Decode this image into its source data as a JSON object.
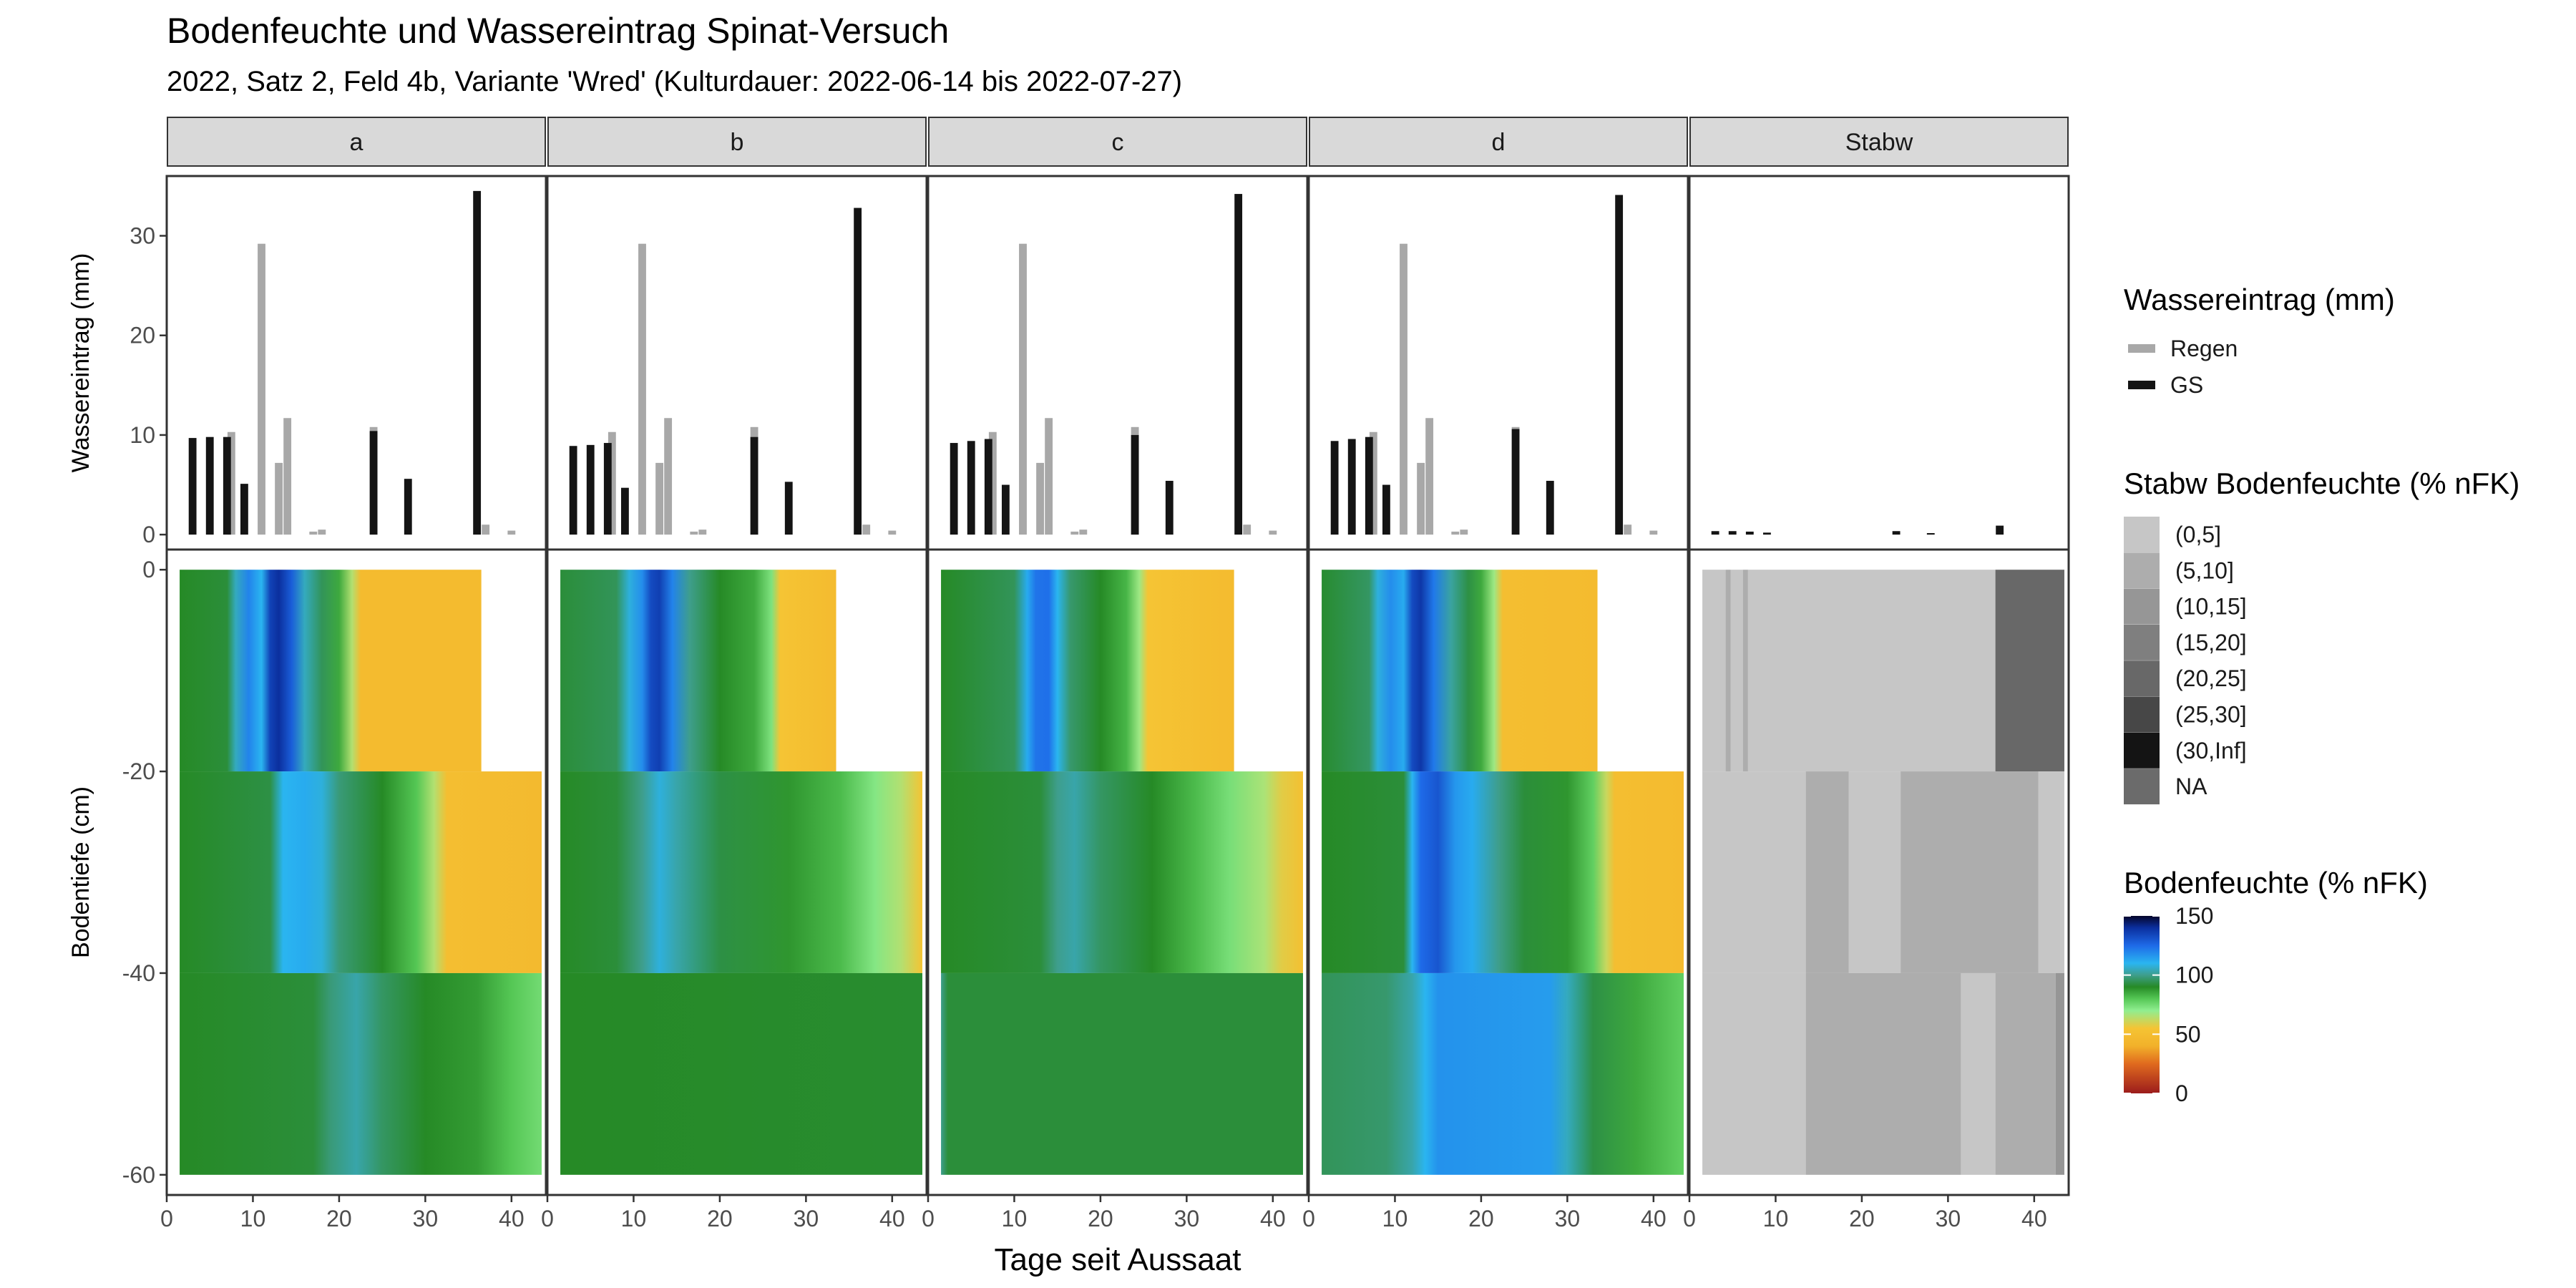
{
  "title": "Bodenfeuchte und Wassereintrag Spinat-Versuch",
  "subtitle": "2022, Satz 2, Feld 4b, Variante 'Wred' (Kulturdauer: 2022-06-14 bis 2022-07-27)",
  "chart_data": {
    "type": "bar",
    "panels": [
      "a",
      "b",
      "c",
      "d",
      "Stabw"
    ],
    "xlabel": "Tage seit Aussaat",
    "xlim": [
      0,
      44
    ],
    "xticks": [
      0,
      10,
      20,
      30,
      40
    ],
    "top": {
      "ylabel": "Wassereintrag (mm)",
      "ylim": [
        -1.5,
        36
      ],
      "yticks": [
        0,
        10,
        20,
        30
      ],
      "rain": {
        "x": [
          7.5,
          11,
          13,
          14,
          17,
          18,
          24,
          37,
          40
        ],
        "y": [
          10.3,
          29.2,
          7.2,
          11.7,
          0.3,
          0.5,
          10.8,
          1.0,
          0.4
        ]
      },
      "series": [
        {
          "name": "GS",
          "panel": "a",
          "x": [
            3,
            5,
            7,
            9,
            24,
            28,
            36
          ],
          "y": [
            9.7,
            9.8,
            9.8,
            5.1,
            10.4,
            5.6,
            34.5
          ]
        },
        {
          "name": "GS",
          "panel": "b",
          "x": [
            3,
            5,
            7,
            9,
            24,
            28,
            36
          ],
          "y": [
            8.9,
            9.0,
            9.2,
            4.7,
            9.8,
            5.3,
            32.8
          ]
        },
        {
          "name": "GS",
          "panel": "c",
          "x": [
            3,
            5,
            7,
            9,
            24,
            28,
            36
          ],
          "y": [
            9.2,
            9.4,
            9.6,
            5.0,
            10.0,
            5.4,
            34.2
          ]
        },
        {
          "name": "GS",
          "panel": "d",
          "x": [
            3,
            5,
            7,
            9,
            24,
            28,
            36
          ],
          "y": [
            9.4,
            9.6,
            9.8,
            5.0,
            10.6,
            5.4,
            34.1
          ]
        },
        {
          "name": "GS",
          "panel": "Stabw",
          "x": [
            3,
            5,
            7,
            9,
            24,
            28,
            36
          ],
          "y": [
            0.35,
            0.35,
            0.3,
            0.2,
            0.35,
            0.15,
            0.9
          ]
        }
      ]
    },
    "bottom": {
      "ylabel": "Bodentiefe (cm)",
      "ylim": [
        -62,
        2
      ],
      "yticks": [
        0,
        -20,
        -40,
        -60
      ],
      "layers": [
        {
          "ymin": -20,
          "ymax": 0,
          "xmin": 1.5
        },
        {
          "ymin": -40,
          "ymax": -20,
          "xmin": 1.5
        },
        {
          "ymin": -60,
          "ymax": -40,
          "xmin": 1.5
        }
      ],
      "moisture": {
        "a": [
          {
            "xmax": 36.5,
            "kf": [
              [
                1.5,
                90
              ],
              [
                7,
                92
              ],
              [
                8,
                105
              ],
              [
                9.5,
                120
              ],
              [
                11,
                110
              ],
              [
                12,
                135
              ],
              [
                13,
                140
              ],
              [
                14.5,
                128
              ],
              [
                16,
                105
              ],
              [
                18,
                95
              ],
              [
                20,
                85
              ],
              [
                21.5,
                65
              ],
              [
                22.5,
                48
              ],
              [
                36.5,
                48
              ]
            ]
          },
          {
            "xmax": 43.5,
            "kf": [
              [
                1.5,
                90
              ],
              [
                12,
                93
              ],
              [
                13.5,
                110
              ],
              [
                16,
                112
              ],
              [
                18,
                108
              ],
              [
                20,
                98
              ],
              [
                25,
                90
              ],
              [
                29,
                80
              ],
              [
                31,
                65
              ],
              [
                32.5,
                50
              ],
              [
                43.5,
                47
              ]
            ]
          },
          {
            "xmax": 43.5,
            "kf": [
              [
                1.5,
                90
              ],
              [
                17,
                92
              ],
              [
                19,
                98
              ],
              [
                22,
                103
              ],
              [
                25,
                96
              ],
              [
                30,
                90
              ],
              [
                36,
                87
              ],
              [
                40,
                80
              ],
              [
                43.5,
                75
              ]
            ]
          }
        ],
        "b": [
          {
            "xmax": 33.5,
            "kf": [
              [
                1.5,
                92
              ],
              [
                8,
                95
              ],
              [
                9.5,
                108
              ],
              [
                11,
                118
              ],
              [
                12,
                133
              ],
              [
                13,
                136
              ],
              [
                14.5,
                120
              ],
              [
                16.5,
                100
              ],
              [
                20,
                90
              ],
              [
                24,
                85
              ],
              [
                26,
                73
              ],
              [
                27,
                55
              ],
              [
                33.5,
                48
              ]
            ]
          },
          {
            "xmax": 43.5,
            "kf": [
              [
                1.5,
                90
              ],
              [
                8,
                92
              ],
              [
                11,
                100
              ],
              [
                13,
                108
              ],
              [
                15,
                103
              ],
              [
                20,
                93
              ],
              [
                28,
                88
              ],
              [
                34,
                82
              ],
              [
                38,
                72
              ],
              [
                41,
                65
              ],
              [
                43.5,
                55
              ]
            ]
          },
          {
            "xmax": 43.5,
            "kf": [
              [
                1.5,
                90
              ],
              [
                43.5,
                91
              ]
            ]
          }
        ],
        "c": [
          {
            "xmax": 35.5,
            "kf": [
              [
                1.5,
                90
              ],
              [
                10,
                95
              ],
              [
                11.5,
                112
              ],
              [
                12.5,
                123
              ],
              [
                14,
                124
              ],
              [
                15,
                110
              ],
              [
                16.5,
                97
              ],
              [
                20,
                90
              ],
              [
                23,
                83
              ],
              [
                24.5,
                68
              ],
              [
                25.5,
                55
              ],
              [
                35.5,
                48
              ]
            ]
          },
          {
            "xmax": 43.5,
            "kf": [
              [
                1.5,
                90
              ],
              [
                13,
                92
              ],
              [
                15,
                100
              ],
              [
                17,
                103
              ],
              [
                20,
                96
              ],
              [
                26,
                90
              ],
              [
                31,
                82
              ],
              [
                35,
                74
              ],
              [
                39,
                66
              ],
              [
                41,
                58
              ],
              [
                43.5,
                52
              ]
            ]
          },
          {
            "xmax": 43.5,
            "kf": [
              [
                1.5,
                100
              ],
              [
                2.3,
                92
              ],
              [
                43.5,
                92
              ]
            ]
          }
        ],
        "d": [
          {
            "xmax": 33.5,
            "kf": [
              [
                1.5,
                91
              ],
              [
                7,
                96
              ],
              [
                8,
                108
              ],
              [
                9.5,
                118
              ],
              [
                11,
                112
              ],
              [
                12,
                133
              ],
              [
                13,
                138
              ],
              [
                14.5,
                122
              ],
              [
                16.5,
                102
              ],
              [
                18.5,
                93
              ],
              [
                20,
                85
              ],
              [
                21.5,
                68
              ],
              [
                22.5,
                50
              ],
              [
                33.5,
                48
              ]
            ]
          },
          {
            "xmax": 43.5,
            "kf": [
              [
                1.5,
                90
              ],
              [
                11,
                92
              ],
              [
                12,
                110
              ],
              [
                13,
                125
              ],
              [
                15,
                130
              ],
              [
                17,
                116
              ],
              [
                19,
                112
              ],
              [
                22,
                100
              ],
              [
                25,
                92
              ],
              [
                30,
                88
              ],
              [
                33,
                78
              ],
              [
                34.5,
                62
              ],
              [
                35.5,
                50
              ],
              [
                43.5,
                48
              ]
            ]
          },
          {
            "xmax": 43.5,
            "kf": [
              [
                1.5,
                95
              ],
              [
                9,
                97
              ],
              [
                12,
                103
              ],
              [
                13.5,
                110
              ],
              [
                15,
                117
              ],
              [
                28,
                115
              ],
              [
                30,
                105
              ],
              [
                33,
                93
              ],
              [
                38,
                85
              ],
              [
                43.5,
                78
              ]
            ]
          }
        ]
      },
      "stabw": [
        {
          "xmax": 43.5,
          "segments": [
            {
              "x0": 1.5,
              "x1": 4.2,
              "c": "(0,5]"
            },
            {
              "x0": 4.2,
              "x1": 4.8,
              "c": "(5,10]"
            },
            {
              "x0": 4.8,
              "x1": 6.2,
              "c": "(0,5]"
            },
            {
              "x0": 6.2,
              "x1": 6.8,
              "c": "(5,10]"
            },
            {
              "x0": 6.8,
              "x1": 35.5,
              "c": "(0,5]"
            },
            {
              "x0": 35.5,
              "x1": 43.5,
              "c": "(20,25]"
            }
          ]
        },
        {
          "xmax": 43.5,
          "segments": [
            {
              "x0": 1.5,
              "x1": 13.5,
              "c": "(0,5]"
            },
            {
              "x0": 13.5,
              "x1": 18.5,
              "c": "(5,10]"
            },
            {
              "x0": 18.5,
              "x1": 24.5,
              "c": "(0,5]"
            },
            {
              "x0": 24.5,
              "x1": 40.5,
              "c": "(5,10]"
            },
            {
              "x0": 40.5,
              "x1": 43.5,
              "c": "(0,5]"
            }
          ]
        },
        {
          "xmax": 43.5,
          "segments": [
            {
              "x0": 1.5,
              "x1": 13.5,
              "c": "(0,5]"
            },
            {
              "x0": 13.5,
              "x1": 31.5,
              "c": "(5,10]"
            },
            {
              "x0": 31.5,
              "x1": 35.5,
              "c": "(0,5]"
            },
            {
              "x0": 35.5,
              "x1": 42.5,
              "c": "(5,10]"
            },
            {
              "x0": 42.5,
              "x1": 43.5,
              "c": "(10,15]"
            }
          ]
        }
      ]
    },
    "legends": {
      "wasser": {
        "title": "Wassereintrag (mm)",
        "items": [
          {
            "label": "Regen",
            "color": "#a8a8a8"
          },
          {
            "label": "GS",
            "color": "#141414"
          }
        ]
      },
      "stabw": {
        "title": "Stabw Bodenfeuchte (% nFK)",
        "items": [
          {
            "label": "(0,5]",
            "color": "#c6c6c6"
          },
          {
            "label": "(5,10]",
            "color": "#adadad"
          },
          {
            "label": "(10,15]",
            "color": "#969696"
          },
          {
            "label": "(15,20]",
            "color": "#7f7f7f"
          },
          {
            "label": "(20,25]",
            "color": "#686868"
          },
          {
            "label": "(25,30]",
            "color": "#474747"
          },
          {
            "label": "(30,Inf]",
            "color": "#141414"
          },
          {
            "label": "NA",
            "color": "#6b6b6b"
          }
        ]
      },
      "boden": {
        "title": "Bodenfeuchte (% nFK)",
        "ticks": [
          0,
          50,
          100,
          150
        ],
        "range": [
          0,
          150
        ],
        "stops": [
          {
            "v": 0,
            "color": "#9b1c1c"
          },
          {
            "v": 25,
            "color": "#e06a1e"
          },
          {
            "v": 40,
            "color": "#f2b12a"
          },
          {
            "v": 55,
            "color": "#f5c434"
          },
          {
            "v": 70,
            "color": "#90ee90"
          },
          {
            "v": 80,
            "color": "#55c755"
          },
          {
            "v": 90,
            "color": "#268a26"
          },
          {
            "v": 100,
            "color": "#3e9e8c"
          },
          {
            "v": 110,
            "color": "#2ab5f0"
          },
          {
            "v": 125,
            "color": "#1e6ae8"
          },
          {
            "v": 140,
            "color": "#0b2f9e"
          },
          {
            "v": 150,
            "color": "#05052a"
          }
        ]
      }
    }
  }
}
